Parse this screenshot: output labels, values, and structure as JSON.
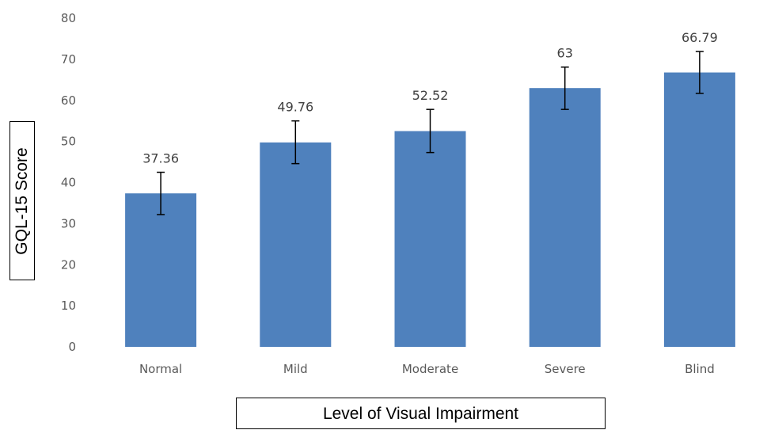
{
  "chart_data": {
    "type": "bar",
    "categories": [
      "Normal",
      "Mild",
      "Moderate",
      "Severe",
      "Blind"
    ],
    "values": [
      37.36,
      49.76,
      52.52,
      63,
      66.79
    ],
    "data_labels": [
      "37.36",
      "49.76",
      "52.52",
      "63",
      "66.79"
    ],
    "error_bars": [
      {
        "low": 32.2,
        "high": 42.5
      },
      {
        "low": 44.6,
        "high": 55.0
      },
      {
        "low": 47.3,
        "high": 57.8
      },
      {
        "low": 57.8,
        "high": 68.1
      },
      {
        "low": 61.7,
        "high": 71.9
      }
    ],
    "xlabel": "Level of Visual Impairment",
    "ylabel": "GQL-15 Score",
    "ylim": [
      0,
      80
    ],
    "yticks": [
      0,
      10,
      20,
      30,
      40,
      50,
      60,
      70,
      80
    ],
    "grid": false,
    "legend": "none",
    "bar_color": "#4F81BD"
  }
}
